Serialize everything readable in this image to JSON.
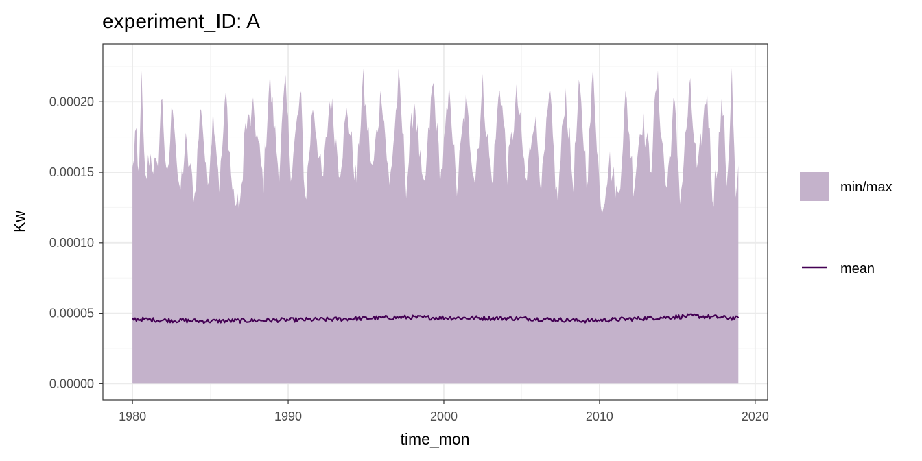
{
  "chart_data": {
    "type": "area",
    "title": "experiment_ID: A",
    "xlabel": "time_mon",
    "ylabel": "Kw",
    "xlim": [
      1978.1,
      2020.8
    ],
    "ylim": [
      -1.15e-05,
      0.000241
    ],
    "x_ticks": [
      1980,
      1990,
      2000,
      2010,
      2020
    ],
    "x_tick_labels": [
      "1980",
      "1990",
      "2000",
      "2010",
      "2020"
    ],
    "y_ticks": [
      0,
      5e-05,
      0.0001,
      0.00015,
      0.0002
    ],
    "y_tick_labels": [
      "0.00000",
      "0.00005",
      "0.00010",
      "0.00015",
      "0.00020"
    ],
    "x_range": [
      1980.0,
      2018.92
    ],
    "grid": true,
    "legend": {
      "position": "right",
      "entries": [
        {
          "label": "min/max",
          "kind": "fill"
        },
        {
          "label": "mean",
          "kind": "line"
        }
      ]
    },
    "series": [
      {
        "name": "min/max",
        "kind": "ribbon",
        "min_constant": 0.0,
        "max_anchor_points": [
          [
            1980.0,
            0.00015
          ],
          [
            1980.2,
            0.000181
          ],
          [
            1980.4,
            0.000135
          ],
          [
            1980.55,
            0.000224
          ],
          [
            1980.8,
            0.00014
          ],
          [
            1981.1,
            0.000163
          ],
          [
            1981.6,
            0.000148
          ],
          [
            1981.9,
            0.000209
          ],
          [
            1982.2,
            0.000135
          ],
          [
            1982.6,
            0.000205
          ],
          [
            1983.0,
            0.00013
          ],
          [
            1983.4,
            0.00017
          ],
          [
            1984.0,
            0.000133
          ],
          [
            1984.4,
            0.000202
          ],
          [
            1984.8,
            0.000138
          ],
          [
            1985.2,
            0.000196
          ],
          [
            1985.6,
            0.00014
          ],
          [
            1986.0,
            0.000205
          ],
          [
            1986.4,
            0.000138
          ],
          [
            1986.9,
            0.000118
          ],
          [
            1987.2,
            0.00018
          ],
          [
            1987.8,
            0.000192
          ],
          [
            1988.4,
            0.000142
          ],
          [
            1988.8,
            0.000217
          ],
          [
            1989.4,
            0.00015
          ],
          [
            1989.8,
            0.000212
          ],
          [
            1990.2,
            0.00015
          ],
          [
            1990.8,
            0.000206
          ],
          [
            1991.1,
            0.000128
          ],
          [
            1991.6,
            0.0002
          ],
          [
            1992.2,
            0.00014
          ],
          [
            1992.7,
            0.000205
          ],
          [
            1993.3,
            0.000152
          ],
          [
            1993.8,
            0.000195
          ],
          [
            1994.4,
            0.00014
          ],
          [
            1994.8,
            0.000216
          ],
          [
            1995.4,
            0.000148
          ],
          [
            1996.0,
            0.00021
          ],
          [
            1996.5,
            0.000138
          ],
          [
            1997.1,
            0.000215
          ],
          [
            1997.6,
            0.00014
          ],
          [
            1998.1,
            0.000205
          ],
          [
            1998.7,
            0.00013
          ],
          [
            1999.3,
            0.000215
          ],
          [
            1999.8,
            0.000145
          ],
          [
            2000.4,
            0.00021
          ],
          [
            2000.8,
            0.000135
          ],
          [
            2001.4,
            0.0002
          ],
          [
            2002.0,
            0.000145
          ],
          [
            2002.5,
            0.00021
          ],
          [
            2003.1,
            0.00014
          ],
          [
            2003.6,
            0.000215
          ],
          [
            2004.1,
            0.00015
          ],
          [
            2004.7,
            0.000205
          ],
          [
            2005.3,
            0.00014
          ],
          [
            2005.8,
            0.000195
          ],
          [
            2006.3,
            0.00014
          ],
          [
            2006.8,
            0.000205
          ],
          [
            2007.3,
            0.000125
          ],
          [
            2007.8,
            0.00021
          ],
          [
            2008.3,
            0.00014
          ],
          [
            2008.7,
            0.00021
          ],
          [
            2009.2,
            0.000145
          ],
          [
            2009.6,
            0.000224
          ],
          [
            2010.1,
            0.000118
          ],
          [
            2010.6,
            0.00016
          ],
          [
            2011.2,
            0.00013
          ],
          [
            2011.7,
            0.000205
          ],
          [
            2012.2,
            0.00014
          ],
          [
            2012.7,
            0.00019
          ],
          [
            2013.3,
            0.000155
          ],
          [
            2013.7,
            0.000218
          ],
          [
            2014.3,
            0.000135
          ],
          [
            2014.8,
            0.0002
          ],
          [
            2015.2,
            0.00013
          ],
          [
            2015.8,
            0.00021
          ],
          [
            2016.3,
            0.000145
          ],
          [
            2016.9,
            0.00021
          ],
          [
            2017.3,
            0.00013
          ],
          [
            2017.9,
            0.0002
          ],
          [
            2018.2,
            0.00014
          ],
          [
            2018.5,
            0.000219
          ],
          [
            2018.75,
            0.000128
          ],
          [
            2018.92,
            0.000145
          ]
        ]
      },
      {
        "name": "mean",
        "kind": "line",
        "mean_level": 4.62e-05,
        "anchor_points": [
          [
            1980.0,
            4.55e-05
          ],
          [
            1981.7,
            4.4e-05
          ],
          [
            1984.8,
            4.25e-05
          ],
          [
            1992.5,
            4.5e-05
          ],
          [
            1997.2,
            4.8e-05
          ],
          [
            1999.8,
            4.75e-05
          ],
          [
            2005.0,
            4.65e-05
          ],
          [
            2009.3,
            4.3e-05
          ],
          [
            2016.1,
            5e-05
          ],
          [
            2018.92,
            4.65e-05
          ]
        ]
      }
    ],
    "colors": {
      "ribbon": "#c4b2cb",
      "mean_line": "#440154",
      "panel_border": "#333333",
      "grid_major": "#ebebeb",
      "grid_minor": "#f5f5f5"
    }
  }
}
